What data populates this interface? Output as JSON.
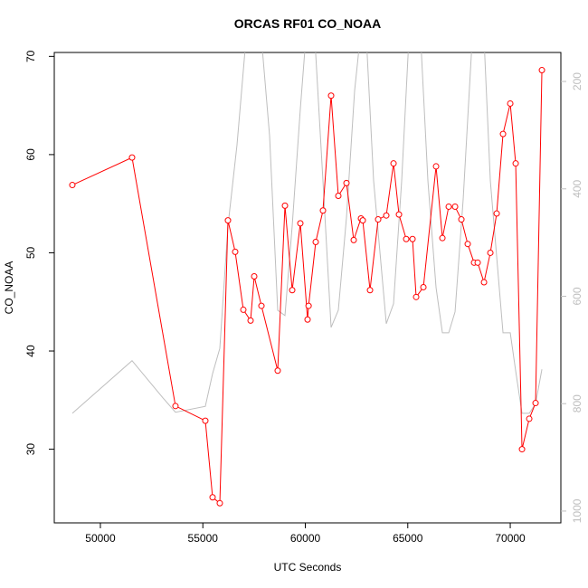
{
  "chart_data": {
    "type": "line",
    "title": "ORCAS RF01 CO_NOAA",
    "x_label": "UTC Seconds",
    "y_label": "CO_NOAA",
    "xlim": [
      47750,
      72470
    ],
    "ylim": [
      22.5,
      70.4
    ],
    "y2lim": [
      1022,
      146
    ],
    "xticks": [
      50000,
      55000,
      60000,
      65000,
      70000
    ],
    "yticks": [
      30,
      40,
      50,
      60,
      70
    ],
    "y2ticks": [
      200,
      400,
      600,
      800,
      1000
    ],
    "y2tick_color": "#bebebe",
    "series": [
      {
        "axis": "y2",
        "color": "#bebebe",
        "markers": false,
        "x": [
          48631,
          51545,
          53046,
          53664,
          55121,
          55475,
          55828,
          56225,
          56667,
          57108,
          57859,
          58256,
          58653,
          59007,
          59360,
          59757,
          60022,
          60464,
          60861,
          61258,
          61611,
          62009,
          62406,
          62671,
          62980,
          63333,
          63951,
          64305,
          64702,
          65055,
          65629,
          65982,
          66380,
          66689,
          66998,
          67307,
          67704,
          68146,
          68720,
          69029,
          69647,
          70000,
          70265,
          70574,
          70927,
          71236,
          71545
        ],
        "values": [
          818,
          720,
          789,
          816,
          805,
          744,
          697,
          469,
          318,
          120,
          120,
          301,
          626,
          636,
          469,
          251,
          120,
          120,
          385,
          658,
          626,
          453,
          217,
          120,
          120,
          385,
          651,
          614,
          385,
          120,
          120,
          385,
          584,
          668,
          668,
          629,
          419,
          120,
          120,
          385,
          668,
          668,
          739,
          818,
          818,
          800,
          736
        ]
      },
      {
        "color": "#ff0000",
        "markers": true,
        "x": [
          48631,
          51545,
          53664,
          55121,
          55475,
          55828,
          56225,
          56578,
          56976,
          57329,
          57506,
          57859,
          58653,
          59007,
          59360,
          59757,
          60110,
          60160,
          60508,
          60861,
          61258,
          61611,
          62009,
          62362,
          62715,
          62804,
          63157,
          63554,
          63951,
          64305,
          64570,
          64923,
          65232,
          65408,
          65762,
          66380,
          66689,
          66998,
          67307,
          67616,
          67925,
          68234,
          68411,
          68720,
          69029,
          69338,
          69647,
          70000,
          70265,
          70574,
          70927,
          71236,
          71545
        ],
        "values": [
          56.9,
          59.7,
          34.4,
          32.9,
          25.1,
          24.5,
          53.3,
          50.1,
          44.2,
          43.1,
          47.6,
          44.6,
          38.0,
          54.8,
          46.2,
          53.0,
          43.2,
          44.6,
          51.1,
          54.3,
          66.0,
          55.8,
          57.1,
          51.3,
          53.5,
          53.3,
          46.2,
          53.4,
          53.8,
          59.1,
          53.9,
          51.4,
          51.4,
          45.5,
          46.5,
          58.8,
          51.5,
          54.7,
          54.7,
          53.4,
          50.9,
          49.0,
          49.0,
          47.0,
          50.0,
          54.0,
          62.1,
          65.2,
          59.1,
          30.0,
          33.1,
          34.7,
          68.6
        ]
      }
    ]
  }
}
